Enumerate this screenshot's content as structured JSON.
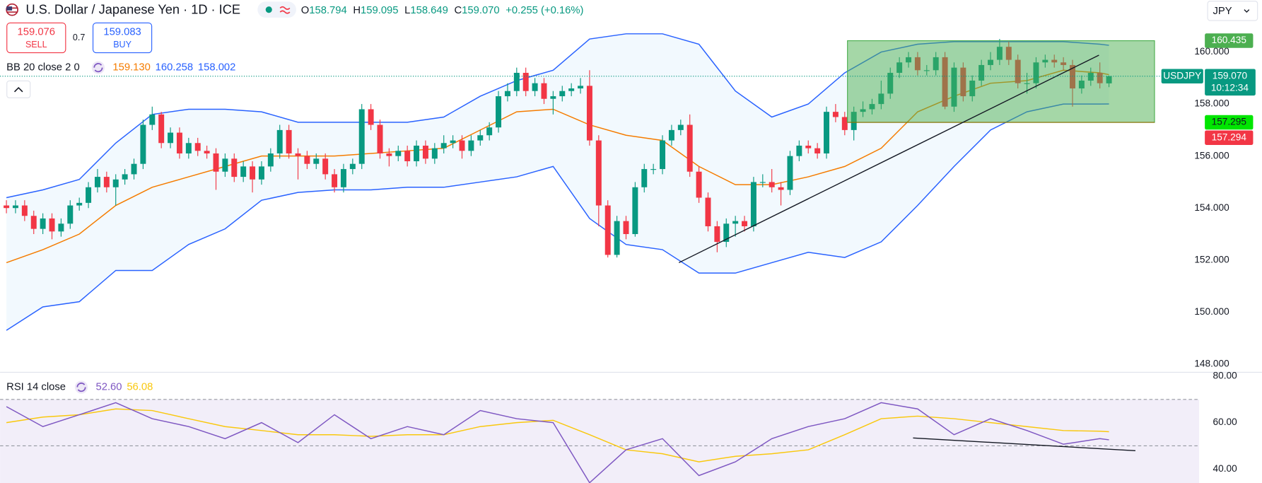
{
  "header": {
    "title": "U.S. Dollar / Japanese Yen · 1D · ICE",
    "ohlc": [
      {
        "key": "O",
        "value": "158.794"
      },
      {
        "key": "H",
        "value": "159.095"
      },
      {
        "key": "L",
        "value": "158.649"
      },
      {
        "key": "C",
        "value": "159.070"
      }
    ],
    "change": "+0.255 (+0.16%)",
    "sell_price": "159.076",
    "sell_label": "SELL",
    "spread": "0.7",
    "buy_price": "159.083",
    "buy_label": "BUY",
    "currency": "JPY"
  },
  "chart_data": [
    {
      "type": "candlestick",
      "symbol_tag": "USDJPY",
      "up_color": "#089981",
      "down_color": "#f23645",
      "open": [
        154.1,
        154.0,
        154.1,
        153.7,
        153.2,
        153.6,
        153.1,
        153.4,
        154.1,
        154.2,
        154.8,
        155.2,
        154.8,
        155.1,
        155.3,
        155.7,
        157.2,
        157.6,
        156.5,
        156.9,
        156.1,
        156.5,
        156.2,
        156.1,
        155.4,
        155.9,
        155.2,
        155.6,
        155.1,
        155.6,
        156.1,
        157.0,
        156.1,
        156.0,
        155.7,
        155.9,
        155.3,
        154.8,
        155.5,
        155.7,
        157.8,
        157.2,
        156.1,
        156.0,
        156.2,
        155.8,
        156.4,
        155.9,
        156.3,
        156.5,
        156.6,
        156.2,
        156.6,
        156.8,
        157.1,
        158.3,
        158.5,
        159.2,
        158.5,
        158.8,
        158.2,
        158.3,
        158.5,
        158.6,
        158.7,
        156.6,
        154.1,
        152.2,
        153.5,
        153.0,
        154.8,
        155.5,
        155.5,
        156.6,
        157.0,
        157.2,
        155.4,
        154.4,
        153.3,
        152.7,
        153.4,
        153.5,
        153.3,
        155.0,
        155.0,
        154.8,
        154.7,
        156.0,
        156.4,
        156.3,
        156.1,
        157.7,
        157.5,
        157.0,
        157.7,
        157.8,
        158.0,
        158.4,
        159.2,
        159.6,
        159.8,
        159.3,
        159.3,
        159.8,
        157.9,
        159.4,
        158.3,
        158.9,
        159.5,
        159.7,
        160.2,
        159.7,
        158.8,
        158.8,
        159.6,
        159.7,
        159.6,
        159.5,
        158.6,
        158.9,
        159.2,
        158.794
      ],
      "high": [
        154.3,
        154.3,
        154.3,
        153.9,
        153.8,
        153.8,
        153.6,
        154.3,
        154.4,
        155.0,
        155.5,
        155.4,
        155.3,
        155.5,
        155.9,
        157.4,
        157.9,
        157.7,
        157.1,
        157.1,
        156.7,
        156.7,
        156.4,
        156.3,
        156.1,
        156.1,
        155.8,
        155.8,
        155.8,
        156.3,
        157.2,
        157.2,
        156.3,
        156.2,
        156.1,
        156.1,
        155.5,
        155.7,
        155.9,
        158.0,
        158.0,
        157.4,
        156.3,
        156.4,
        156.4,
        156.6,
        156.6,
        156.5,
        156.8,
        156.8,
        156.8,
        156.8,
        157.0,
        157.3,
        158.5,
        158.8,
        159.4,
        159.4,
        159.0,
        159.0,
        158.5,
        158.7,
        158.8,
        159.0,
        159.3,
        156.8,
        154.3,
        153.7,
        153.7,
        155.0,
        155.7,
        155.7,
        156.8,
        157.2,
        157.4,
        157.6,
        155.6,
        154.6,
        153.5,
        153.6,
        153.7,
        153.7,
        155.2,
        155.3,
        155.5,
        155.0,
        156.2,
        156.6,
        156.6,
        156.5,
        157.9,
        158.0,
        157.7,
        157.9,
        158.1,
        158.2,
        158.9,
        159.4,
        159.8,
        160.0,
        160.0,
        159.5,
        160.0,
        160.0,
        159.6,
        159.6,
        159.1,
        159.7,
        160.0,
        160.5,
        160.4,
        159.9,
        159.2,
        159.8,
        159.9,
        159.9,
        159.8,
        159.7,
        159.1,
        159.4,
        159.6,
        159.095
      ],
      "low": [
        153.8,
        153.8,
        153.5,
        153.0,
        153.0,
        152.8,
        152.9,
        153.2,
        153.9,
        154.0,
        154.6,
        154.6,
        154.1,
        154.9,
        155.1,
        155.5,
        157.0,
        156.3,
        156.3,
        155.9,
        155.9,
        156.0,
        155.9,
        154.7,
        155.2,
        155.0,
        155.0,
        154.6,
        154.9,
        155.4,
        155.9,
        155.9,
        155.1,
        155.5,
        155.5,
        155.1,
        154.6,
        154.6,
        155.3,
        155.5,
        157.0,
        155.9,
        155.6,
        155.8,
        155.6,
        155.6,
        155.7,
        155.7,
        156.1,
        156.3,
        155.9,
        156.0,
        156.4,
        156.6,
        156.9,
        158.1,
        158.3,
        158.3,
        158.3,
        158.0,
        157.6,
        158.1,
        158.3,
        158.4,
        156.4,
        153.3,
        152.1,
        152.1,
        152.8,
        152.9,
        154.6,
        155.3,
        155.3,
        156.4,
        156.8,
        155.2,
        154.2,
        153.1,
        152.3,
        152.5,
        152.9,
        153.1,
        153.1,
        154.8,
        154.6,
        154.1,
        154.5,
        155.8,
        156.1,
        155.9,
        155.9,
        157.3,
        156.8,
        156.6,
        157.5,
        157.6,
        157.8,
        158.2,
        159.0,
        159.4,
        159.1,
        159.1,
        159.1,
        157.8,
        157.7,
        158.1,
        158.1,
        158.7,
        159.3,
        159.5,
        159.5,
        158.6,
        158.4,
        158.6,
        159.4,
        159.4,
        159.3,
        157.9,
        158.4,
        158.7,
        158.6,
        158.649
      ],
      "close": [
        154.0,
        154.1,
        153.7,
        153.2,
        153.6,
        153.1,
        153.4,
        154.1,
        154.2,
        154.8,
        155.2,
        154.8,
        155.1,
        155.3,
        155.7,
        157.2,
        157.6,
        156.5,
        156.9,
        156.1,
        156.5,
        156.2,
        156.1,
        155.4,
        155.9,
        155.2,
        155.6,
        155.1,
        155.6,
        156.1,
        157.0,
        156.1,
        156.0,
        155.7,
        155.9,
        155.3,
        154.8,
        155.5,
        155.7,
        157.8,
        157.2,
        156.1,
        156.0,
        156.2,
        155.8,
        156.4,
        155.9,
        156.3,
        156.5,
        156.6,
        156.2,
        156.6,
        156.8,
        157.1,
        158.3,
        158.5,
        159.2,
        158.5,
        158.8,
        158.2,
        158.3,
        158.5,
        158.6,
        158.7,
        156.6,
        154.1,
        152.2,
        153.5,
        153.0,
        154.8,
        155.5,
        155.5,
        156.6,
        157.0,
        157.2,
        155.4,
        154.4,
        153.3,
        152.7,
        153.4,
        153.5,
        153.3,
        155.0,
        155.0,
        154.8,
        154.7,
        156.0,
        156.4,
        156.3,
        156.1,
        157.7,
        157.5,
        157.0,
        157.7,
        157.8,
        158.0,
        158.4,
        159.2,
        159.6,
        159.8,
        159.3,
        159.3,
        159.8,
        157.9,
        159.4,
        158.3,
        158.9,
        159.5,
        159.7,
        160.2,
        159.7,
        158.8,
        158.8,
        159.6,
        159.7,
        159.6,
        159.5,
        158.6,
        158.9,
        159.2,
        158.8,
        159.07
      ],
      "last_price": {
        "value": 159.07,
        "label": "159.070"
      },
      "countdown": "10:12:34",
      "indicator": {
        "title": "BB 20 close 2 0",
        "fill": "rgba(33,150,243,0.06)",
        "x": [
          0,
          4,
          8,
          12,
          16,
          20,
          24,
          28,
          32,
          36,
          40,
          44,
          48,
          52,
          56,
          60,
          64,
          68,
          72,
          76,
          80,
          84,
          88,
          92,
          96,
          100,
          104,
          108,
          112,
          116,
          120,
          121
        ],
        "series": [
          {
            "color": "#f57c00",
            "legend_value": "159.130",
            "values": [
              151.9,
              152.4,
              153.0,
              154.1,
              154.8,
              155.2,
              155.6,
              156.0,
              156.0,
              156.0,
              156.1,
              156.2,
              156.3,
              157.0,
              157.7,
              157.8,
              157.2,
              156.8,
              156.6,
              155.6,
              154.9,
              154.9,
              155.2,
              155.6,
              156.3,
              157.7,
              158.3,
              158.8,
              158.9,
              159.3,
              159.2,
              159.13
            ]
          },
          {
            "color": "#2962ff",
            "legend_value": "160.258",
            "values": [
              154.4,
              154.7,
              155.1,
              156.5,
              157.6,
              157.8,
              157.8,
              157.7,
              157.3,
              157.3,
              157.3,
              157.3,
              157.5,
              158.3,
              158.9,
              159.3,
              160.5,
              160.7,
              160.7,
              160.3,
              158.5,
              157.5,
              158.0,
              159.2,
              160.0,
              160.3,
              160.4,
              160.4,
              160.4,
              160.4,
              160.3,
              160.258
            ]
          },
          {
            "color": "#2962ff",
            "legend_value": "158.002",
            "values": [
              149.3,
              150.2,
              150.4,
              151.6,
              151.6,
              152.6,
              153.2,
              154.3,
              154.6,
              154.7,
              154.7,
              154.8,
              154.8,
              155.0,
              155.2,
              155.6,
              153.6,
              152.6,
              152.4,
              151.5,
              151.5,
              151.9,
              152.3,
              152.1,
              152.7,
              154.1,
              155.6,
              157.0,
              157.7,
              158.0,
              158.0,
              158.002
            ]
          }
        ]
      },
      "rectangle": {
        "x": [
          92.3,
          126
        ],
        "top": {
          "value": 160.435,
          "label": "160.435"
        },
        "bottom": {
          "value": 157.295,
          "label": "157.295"
        },
        "color": "rgba(76,175,80,0.5)",
        "tag_color": "#4caf50",
        "bottom_tag_color": "#00e600"
      },
      "price_labels": [
        {
          "value": 157.294,
          "label": "157.294",
          "color": "#f23645"
        }
      ],
      "trendline": {
        "x": [
          73.8,
          119.9
        ],
        "y": [
          151.9,
          159.88
        ]
      },
      "xlim": [
        -0.7,
        130.9
      ],
      "ylim": [
        147.7,
        162.0
      ],
      "yticks": [
        {
          "value": 148,
          "label": "148.000"
        },
        {
          "value": 150,
          "label": "150.000"
        },
        {
          "value": 152,
          "label": "152.000"
        },
        {
          "value": 154,
          "label": "154.000"
        },
        {
          "value": 156,
          "label": "156.000"
        },
        {
          "value": 158,
          "label": "158.000"
        },
        {
          "value": 160,
          "label": "160.000"
        }
      ],
      "grid": false
    },
    {
      "type": "line",
      "title": "RSI 14 close",
      "x": [
        0,
        4,
        8,
        12,
        16,
        20,
        24,
        28,
        32,
        36,
        40,
        44,
        48,
        52,
        56,
        60,
        64,
        68,
        72,
        76,
        80,
        84,
        88,
        92,
        96,
        100,
        104,
        108,
        112,
        116,
        120,
        121
      ],
      "series": [
        {
          "color": "#7e57c2",
          "legend_value": "52.60",
          "values": [
            66.9,
            58.3,
            63.4,
            68.6,
            61.7,
            58.3,
            53.1,
            60.0,
            51.4,
            63.4,
            53.1,
            58.3,
            54.8,
            65.2,
            61.7,
            60.0,
            34.1,
            48.3,
            53.1,
            37.2,
            43.1,
            53.1,
            58.3,
            61.7,
            68.6,
            65.9,
            54.8,
            61.7,
            56.6,
            50.7,
            53.1,
            52.6
          ]
        },
        {
          "color": "#f9c80e",
          "legend_value": "56.08",
          "values": [
            60.0,
            62.4,
            63.4,
            65.9,
            65.2,
            61.7,
            58.3,
            56.6,
            54.8,
            54.8,
            54.1,
            54.8,
            54.8,
            58.3,
            60.0,
            61.0,
            54.8,
            48.3,
            46.6,
            43.1,
            45.5,
            46.6,
            48.3,
            54.8,
            61.7,
            62.8,
            61.7,
            60.0,
            58.3,
            56.6,
            56.3,
            56.08
          ]
        }
      ],
      "levels": [
        70,
        50
      ],
      "band": [
        30,
        70
      ],
      "band_color": "rgba(126,87,194,0.1)",
      "trendline": {
        "x": [
          99.5,
          123.9
        ],
        "y": [
          53.4,
          47.9
        ]
      },
      "xlim": [
        -0.7,
        130.9
      ],
      "ylim": [
        34,
        81.5
      ],
      "yticks": [
        {
          "value": 40,
          "label": "40.00"
        },
        {
          "value": 60,
          "label": "60.00"
        },
        {
          "value": 80,
          "label": "80.00"
        }
      ],
      "grid": false
    }
  ]
}
